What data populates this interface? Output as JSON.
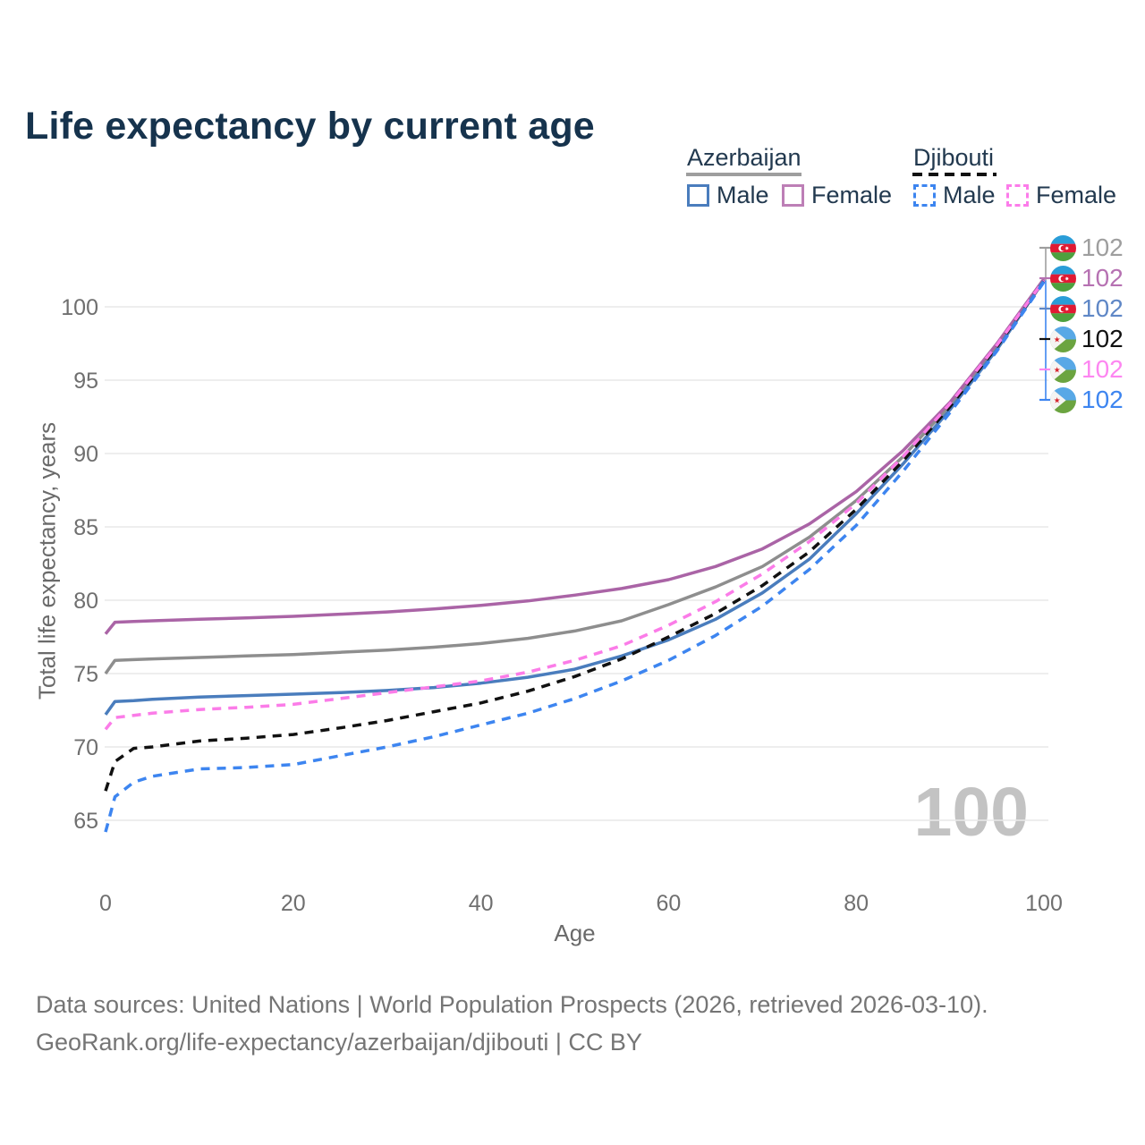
{
  "watermark": "100",
  "legend": {
    "groups": [
      {
        "title": "Azerbaijan",
        "line_style": "solid",
        "underline_color": "#9e9e9e",
        "items": [
          {
            "label": "Male",
            "color": "#4a7dbd"
          },
          {
            "label": "Female",
            "color": "#bd7fb6"
          }
        ]
      },
      {
        "title": "Djibouti",
        "line_style": "dashed",
        "underline_color": "#111111",
        "items": [
          {
            "label": "Male",
            "color": "#3d85f0"
          },
          {
            "label": "Female",
            "color": "#fc7cea"
          }
        ]
      }
    ]
  },
  "end_labels": [
    {
      "country": "Azerbaijan",
      "flag": "az",
      "series": "az-total",
      "value": "102",
      "color": "#9e9e9e"
    },
    {
      "country": "Azerbaijan",
      "flag": "az",
      "series": "az-female",
      "value": "102",
      "color": "#b671b2"
    },
    {
      "country": "Azerbaijan",
      "flag": "az",
      "series": "az-male",
      "value": "102",
      "color": "#5f87c6"
    },
    {
      "country": "Djibouti",
      "flag": "dj",
      "series": "dj-total",
      "value": "102",
      "color": "#111111"
    },
    {
      "country": "Djibouti",
      "flag": "dj",
      "series": "dj-female",
      "value": "102",
      "color": "#fd86f1"
    },
    {
      "country": "Djibouti",
      "flag": "dj",
      "series": "dj-male",
      "value": "102",
      "color": "#3d85f0"
    }
  ],
  "footer": {
    "line1": "Data sources: United Nations | World Population Prospects (2026, retrieved 2026-03-10).",
    "line2": "GeoRank.org/life-expectancy/azerbaijan/djibouti | CC BY"
  },
  "chart_data": {
    "type": "line",
    "title": "Life expectancy by current age",
    "xlabel": "Age",
    "ylabel": "Total life expectancy, years",
    "xlim": [
      0,
      100
    ],
    "ylim": [
      63,
      103
    ],
    "xticks": [
      0,
      20,
      40,
      60,
      80,
      100
    ],
    "yticks": [
      65,
      70,
      75,
      80,
      85,
      90,
      95,
      100
    ],
    "grid": "horizontal-only",
    "legend_position": "top-right",
    "hovered_age": "100",
    "series": [
      {
        "id": "az-total",
        "country": "Azerbaijan",
        "sex": "Both sexes",
        "line": "solid",
        "color": "#8e8e8e",
        "points": [
          [
            0,
            75.0
          ],
          [
            1,
            75.9
          ],
          [
            3,
            75.95
          ],
          [
            5,
            76.0
          ],
          [
            10,
            76.1
          ],
          [
            15,
            76.2
          ],
          [
            20,
            76.3
          ],
          [
            25,
            76.45
          ],
          [
            30,
            76.6
          ],
          [
            35,
            76.8
          ],
          [
            40,
            77.05
          ],
          [
            45,
            77.4
          ],
          [
            50,
            77.9
          ],
          [
            55,
            78.6
          ],
          [
            60,
            79.7
          ],
          [
            65,
            80.9
          ],
          [
            70,
            82.3
          ],
          [
            75,
            84.3
          ],
          [
            80,
            86.8
          ],
          [
            85,
            89.8
          ],
          [
            90,
            93.3
          ],
          [
            95,
            97.3
          ],
          [
            100,
            101.8
          ]
        ]
      },
      {
        "id": "az-female",
        "country": "Azerbaijan",
        "sex": "Female",
        "line": "solid",
        "color": "#aa64a6",
        "points": [
          [
            0,
            77.7
          ],
          [
            1,
            78.5
          ],
          [
            3,
            78.55
          ],
          [
            5,
            78.6
          ],
          [
            10,
            78.7
          ],
          [
            15,
            78.8
          ],
          [
            20,
            78.9
          ],
          [
            25,
            79.05
          ],
          [
            30,
            79.2
          ],
          [
            35,
            79.4
          ],
          [
            40,
            79.65
          ],
          [
            45,
            79.95
          ],
          [
            50,
            80.35
          ],
          [
            55,
            80.8
          ],
          [
            60,
            81.4
          ],
          [
            65,
            82.3
          ],
          [
            70,
            83.5
          ],
          [
            75,
            85.2
          ],
          [
            80,
            87.4
          ],
          [
            85,
            90.2
          ],
          [
            90,
            93.5
          ],
          [
            95,
            97.5
          ],
          [
            100,
            101.9
          ]
        ]
      },
      {
        "id": "az-male",
        "country": "Azerbaijan",
        "sex": "Male",
        "line": "solid",
        "color": "#4a7dbd",
        "points": [
          [
            0,
            72.2
          ],
          [
            1,
            73.1
          ],
          [
            3,
            73.15
          ],
          [
            5,
            73.25
          ],
          [
            10,
            73.4
          ],
          [
            15,
            73.5
          ],
          [
            20,
            73.6
          ],
          [
            25,
            73.7
          ],
          [
            30,
            73.85
          ],
          [
            35,
            74.05
          ],
          [
            40,
            74.35
          ],
          [
            45,
            74.75
          ],
          [
            50,
            75.3
          ],
          [
            55,
            76.2
          ],
          [
            60,
            77.3
          ],
          [
            65,
            78.7
          ],
          [
            70,
            80.5
          ],
          [
            75,
            82.8
          ],
          [
            80,
            85.9
          ],
          [
            85,
            89.3
          ],
          [
            90,
            93.0
          ],
          [
            95,
            97.1
          ],
          [
            100,
            101.8
          ]
        ]
      },
      {
        "id": "dj-total",
        "country": "Djibouti",
        "sex": "Both sexes",
        "line": "dashed",
        "color": "#111111",
        "points": [
          [
            0,
            67.0
          ],
          [
            1,
            69.0
          ],
          [
            3,
            69.9
          ],
          [
            5,
            70.0
          ],
          [
            10,
            70.4
          ],
          [
            15,
            70.6
          ],
          [
            20,
            70.85
          ],
          [
            25,
            71.3
          ],
          [
            30,
            71.8
          ],
          [
            35,
            72.4
          ],
          [
            40,
            73.0
          ],
          [
            45,
            73.8
          ],
          [
            50,
            74.8
          ],
          [
            55,
            76.0
          ],
          [
            60,
            77.5
          ],
          [
            65,
            79.1
          ],
          [
            70,
            81.0
          ],
          [
            75,
            83.3
          ],
          [
            80,
            86.2
          ],
          [
            85,
            89.5
          ],
          [
            90,
            93.2
          ],
          [
            95,
            97.3
          ],
          [
            100,
            101.8
          ]
        ]
      },
      {
        "id": "dj-female",
        "country": "Djibouti",
        "sex": "Female",
        "line": "dashed",
        "color": "#fb7ce8",
        "points": [
          [
            0,
            71.2
          ],
          [
            1,
            72.0
          ],
          [
            3,
            72.15
          ],
          [
            5,
            72.3
          ],
          [
            10,
            72.55
          ],
          [
            15,
            72.7
          ],
          [
            20,
            72.9
          ],
          [
            25,
            73.3
          ],
          [
            30,
            73.7
          ],
          [
            35,
            74.1
          ],
          [
            40,
            74.5
          ],
          [
            45,
            75.1
          ],
          [
            50,
            75.9
          ],
          [
            55,
            76.9
          ],
          [
            60,
            78.3
          ],
          [
            65,
            79.9
          ],
          [
            70,
            81.8
          ],
          [
            75,
            84.0
          ],
          [
            80,
            86.6
          ],
          [
            85,
            89.8
          ],
          [
            90,
            93.4
          ],
          [
            95,
            97.4
          ],
          [
            100,
            101.8
          ]
        ]
      },
      {
        "id": "dj-male",
        "country": "Djibouti",
        "sex": "Male",
        "line": "dashed",
        "color": "#3d85f0",
        "points": [
          [
            0,
            64.2
          ],
          [
            1,
            66.6
          ],
          [
            3,
            67.6
          ],
          [
            5,
            68.0
          ],
          [
            10,
            68.5
          ],
          [
            15,
            68.6
          ],
          [
            20,
            68.8
          ],
          [
            25,
            69.4
          ],
          [
            30,
            70.0
          ],
          [
            35,
            70.7
          ],
          [
            40,
            71.5
          ],
          [
            45,
            72.3
          ],
          [
            50,
            73.3
          ],
          [
            55,
            74.5
          ],
          [
            60,
            75.9
          ],
          [
            65,
            77.6
          ],
          [
            70,
            79.6
          ],
          [
            75,
            82.1
          ],
          [
            80,
            85.1
          ],
          [
            85,
            88.8
          ],
          [
            90,
            92.8
          ],
          [
            95,
            97.0
          ],
          [
            100,
            101.7
          ]
        ]
      }
    ]
  }
}
